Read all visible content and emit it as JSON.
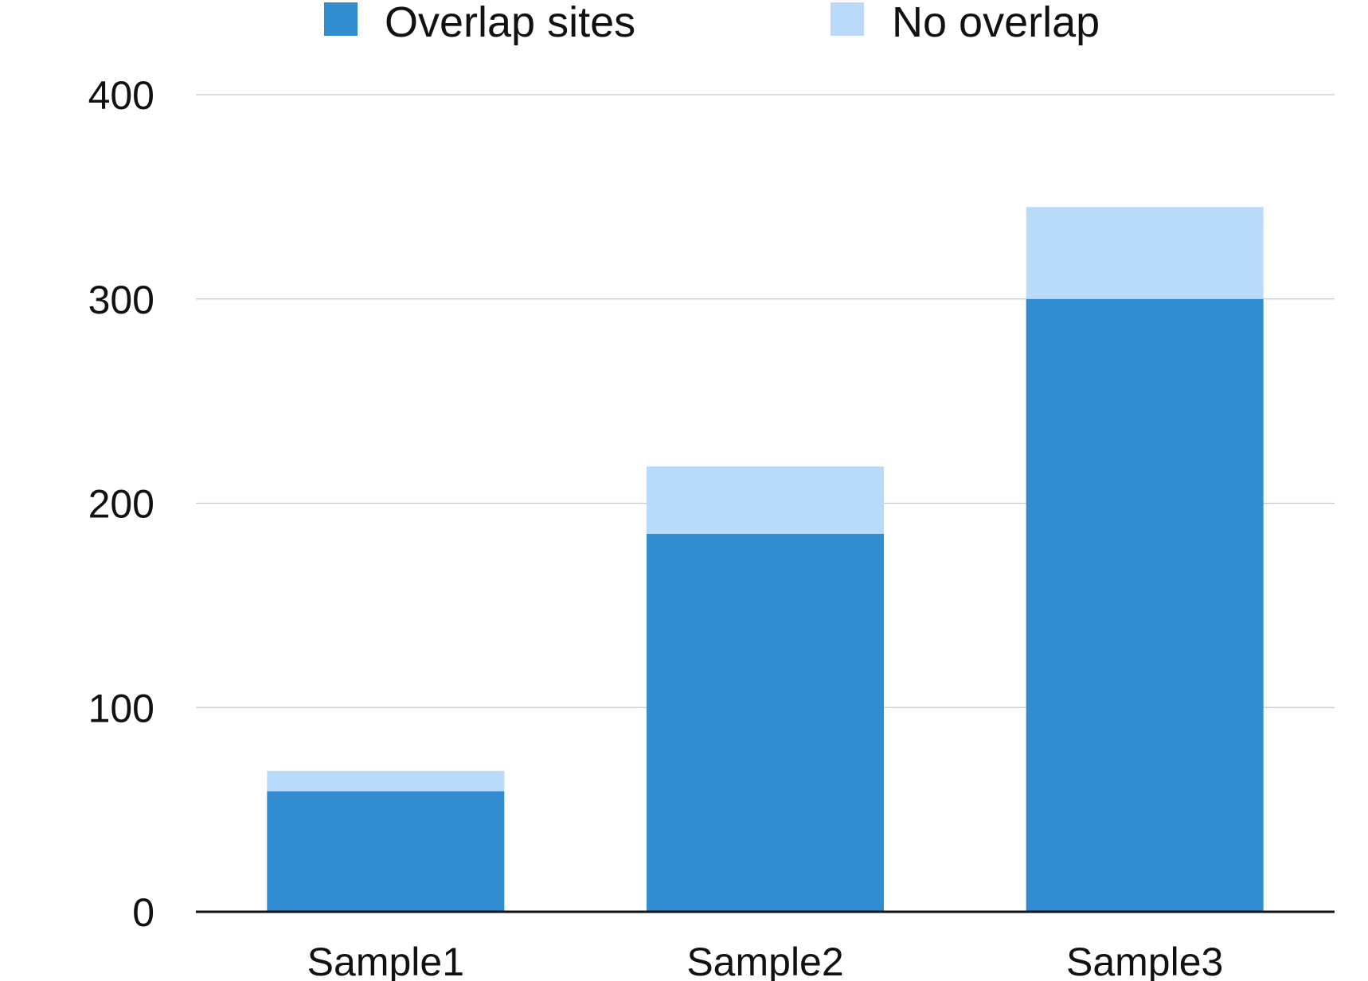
{
  "chart_data": {
    "type": "bar",
    "stacked": true,
    "title": "",
    "xlabel": "",
    "ylabel": "",
    "categories": [
      "Sample1",
      "Sample2",
      "Sample3"
    ],
    "series": [
      {
        "name": "Overlap sites",
        "values": [
          59,
          185,
          300
        ],
        "color": "#318dcf"
      },
      {
        "name": "No overlap",
        "values": [
          10,
          33,
          45
        ],
        "color": "#b9dbf9"
      }
    ],
    "ylim": [
      0,
      400
    ],
    "yticks": [
      0,
      100,
      200,
      300,
      400
    ],
    "grid": true,
    "legend": "top"
  }
}
